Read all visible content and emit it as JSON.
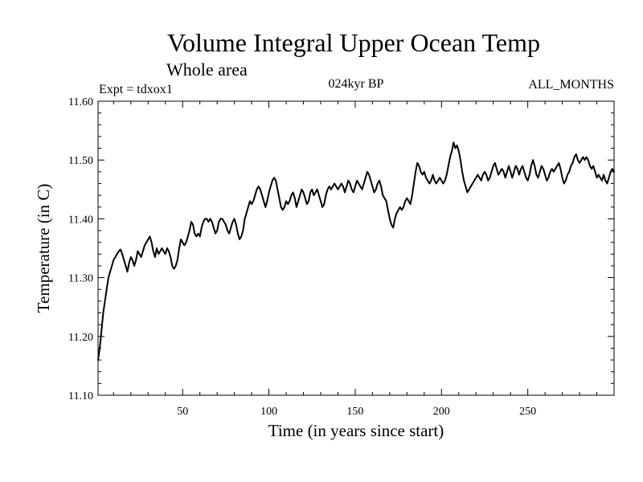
{
  "chart_data": {
    "type": "line",
    "title": "Volume Integral Upper Ocean Temp",
    "subtitle": "Whole area",
    "annotations": {
      "left": "Expt = tdxox1",
      "center": "024kyr BP",
      "right": "ALL_MONTHS"
    },
    "xlabel": "Time (in years since start)",
    "ylabel": "Temperature (in C)",
    "xlim": [
      1,
      300
    ],
    "ylim": [
      11.1,
      11.6
    ],
    "x_ticks": [
      50,
      100,
      150,
      200,
      250
    ],
    "x_tick_labels": [
      "50",
      "100",
      "150",
      "200",
      "250"
    ],
    "y_ticks": [
      11.1,
      11.2,
      11.3,
      11.4,
      11.5,
      11.6
    ],
    "y_tick_labels": [
      "11.10",
      "11.20",
      "11.30",
      "11.40",
      "11.50",
      "11.60"
    ],
    "grid": false,
    "legend": "none",
    "series": [
      {
        "name": "Temperature",
        "color": "#000000",
        "points": [
          [
            1,
            11.16
          ],
          [
            2,
            11.18
          ],
          [
            3,
            11.21
          ],
          [
            4,
            11.24
          ],
          [
            5,
            11.26
          ],
          [
            6,
            11.28
          ],
          [
            7,
            11.3
          ],
          [
            8,
            11.31
          ],
          [
            9,
            11.32
          ],
          [
            10,
            11.33
          ],
          [
            11,
            11.335
          ],
          [
            12,
            11.34
          ],
          [
            13,
            11.345
          ],
          [
            14,
            11.348
          ],
          [
            15,
            11.34
          ],
          [
            16,
            11.33
          ],
          [
            17,
            11.32
          ],
          [
            18,
            11.31
          ],
          [
            19,
            11.325
          ],
          [
            20,
            11.335
          ],
          [
            21,
            11.33
          ],
          [
            22,
            11.32
          ],
          [
            23,
            11.33
          ],
          [
            24,
            11.345
          ],
          [
            25,
            11.34
          ],
          [
            26,
            11.335
          ],
          [
            27,
            11.345
          ],
          [
            28,
            11.355
          ],
          [
            29,
            11.36
          ],
          [
            30,
            11.365
          ],
          [
            31,
            11.37
          ],
          [
            32,
            11.36
          ],
          [
            33,
            11.345
          ],
          [
            34,
            11.335
          ],
          [
            35,
            11.35
          ],
          [
            36,
            11.34
          ],
          [
            37,
            11.345
          ],
          [
            38,
            11.35
          ],
          [
            39,
            11.345
          ],
          [
            40,
            11.34
          ],
          [
            41,
            11.35
          ],
          [
            42,
            11.345
          ],
          [
            43,
            11.335
          ],
          [
            44,
            11.32
          ],
          [
            45,
            11.315
          ],
          [
            46,
            11.32
          ],
          [
            47,
            11.33
          ],
          [
            48,
            11.35
          ],
          [
            49,
            11.365
          ],
          [
            50,
            11.36
          ],
          [
            51,
            11.355
          ],
          [
            52,
            11.36
          ],
          [
            53,
            11.37
          ],
          [
            54,
            11.38
          ],
          [
            55,
            11.395
          ],
          [
            56,
            11.39
          ],
          [
            57,
            11.375
          ],
          [
            58,
            11.37
          ],
          [
            59,
            11.375
          ],
          [
            60,
            11.37
          ],
          [
            61,
            11.385
          ],
          [
            62,
            11.395
          ],
          [
            63,
            11.4
          ],
          [
            64,
            11.4
          ],
          [
            65,
            11.395
          ],
          [
            66,
            11.4
          ],
          [
            67,
            11.395
          ],
          [
            68,
            11.385
          ],
          [
            69,
            11.375
          ],
          [
            70,
            11.38
          ],
          [
            71,
            11.395
          ],
          [
            72,
            11.4
          ],
          [
            73,
            11.4
          ],
          [
            74,
            11.395
          ],
          [
            75,
            11.39
          ],
          [
            76,
            11.38
          ],
          [
            77,
            11.375
          ],
          [
            78,
            11.385
          ],
          [
            79,
            11.395
          ],
          [
            80,
            11.4
          ],
          [
            81,
            11.39
          ],
          [
            82,
            11.375
          ],
          [
            83,
            11.365
          ],
          [
            84,
            11.37
          ],
          [
            85,
            11.38
          ],
          [
            86,
            11.4
          ],
          [
            87,
            11.41
          ],
          [
            88,
            11.42
          ],
          [
            89,
            11.43
          ],
          [
            90,
            11.425
          ],
          [
            91,
            11.43
          ],
          [
            92,
            11.44
          ],
          [
            93,
            11.45
          ],
          [
            94,
            11.455
          ],
          [
            95,
            11.45
          ],
          [
            96,
            11.44
          ],
          [
            97,
            11.43
          ],
          [
            98,
            11.42
          ],
          [
            99,
            11.43
          ],
          [
            100,
            11.445
          ],
          [
            101,
            11.455
          ],
          [
            102,
            11.465
          ],
          [
            103,
            11.47
          ],
          [
            104,
            11.465
          ],
          [
            105,
            11.45
          ],
          [
            106,
            11.435
          ],
          [
            107,
            11.42
          ],
          [
            108,
            11.415
          ],
          [
            109,
            11.42
          ],
          [
            110,
            11.43
          ],
          [
            111,
            11.425
          ],
          [
            112,
            11.43
          ],
          [
            113,
            11.44
          ],
          [
            114,
            11.445
          ],
          [
            115,
            11.435
          ],
          [
            116,
            11.42
          ],
          [
            117,
            11.43
          ],
          [
            118,
            11.44
          ],
          [
            119,
            11.45
          ],
          [
            120,
            11.445
          ],
          [
            121,
            11.435
          ],
          [
            122,
            11.425
          ],
          [
            123,
            11.43
          ],
          [
            124,
            11.445
          ],
          [
            125,
            11.45
          ],
          [
            126,
            11.44
          ],
          [
            127,
            11.445
          ],
          [
            128,
            11.45
          ],
          [
            129,
            11.44
          ],
          [
            130,
            11.43
          ],
          [
            131,
            11.42
          ],
          [
            132,
            11.425
          ],
          [
            133,
            11.44
          ],
          [
            134,
            11.45
          ],
          [
            135,
            11.455
          ],
          [
            136,
            11.45
          ],
          [
            137,
            11.455
          ],
          [
            138,
            11.46
          ],
          [
            139,
            11.455
          ],
          [
            140,
            11.45
          ],
          [
            141,
            11.455
          ],
          [
            142,
            11.46
          ],
          [
            143,
            11.455
          ],
          [
            144,
            11.445
          ],
          [
            145,
            11.455
          ],
          [
            146,
            11.465
          ],
          [
            147,
            11.46
          ],
          [
            148,
            11.45
          ],
          [
            149,
            11.445
          ],
          [
            150,
            11.455
          ],
          [
            151,
            11.465
          ],
          [
            152,
            11.46
          ],
          [
            153,
            11.455
          ],
          [
            154,
            11.45
          ],
          [
            155,
            11.46
          ],
          [
            156,
            11.47
          ],
          [
            157,
            11.48
          ],
          [
            158,
            11.475
          ],
          [
            159,
            11.465
          ],
          [
            160,
            11.455
          ],
          [
            161,
            11.445
          ],
          [
            162,
            11.45
          ],
          [
            163,
            11.46
          ],
          [
            164,
            11.465
          ],
          [
            165,
            11.455
          ],
          [
            166,
            11.44
          ],
          [
            167,
            11.435
          ],
          [
            168,
            11.43
          ],
          [
            169,
            11.415
          ],
          [
            170,
            11.4
          ],
          [
            171,
            11.39
          ],
          [
            172,
            11.385
          ],
          [
            173,
            11.4
          ],
          [
            174,
            11.41
          ],
          [
            175,
            11.415
          ],
          [
            176,
            11.42
          ],
          [
            177,
            11.415
          ],
          [
            178,
            11.42
          ],
          [
            179,
            11.43
          ],
          [
            180,
            11.435
          ],
          [
            181,
            11.43
          ],
          [
            182,
            11.425
          ],
          [
            183,
            11.44
          ],
          [
            184,
            11.46
          ],
          [
            185,
            11.48
          ],
          [
            186,
            11.495
          ],
          [
            187,
            11.49
          ],
          [
            188,
            11.48
          ],
          [
            189,
            11.475
          ],
          [
            190,
            11.48
          ],
          [
            191,
            11.47
          ],
          [
            192,
            11.465
          ],
          [
            193,
            11.46
          ],
          [
            194,
            11.465
          ],
          [
            195,
            11.475
          ],
          [
            196,
            11.465
          ],
          [
            197,
            11.46
          ],
          [
            198,
            11.465
          ],
          [
            199,
            11.47
          ],
          [
            200,
            11.465
          ],
          [
            201,
            11.46
          ],
          [
            202,
            11.465
          ],
          [
            203,
            11.475
          ],
          [
            204,
            11.49
          ],
          [
            205,
            11.505
          ],
          [
            206,
            11.515
          ],
          [
            207,
            11.53
          ],
          [
            208,
            11.52
          ],
          [
            209,
            11.525
          ],
          [
            210,
            11.515
          ],
          [
            211,
            11.5
          ],
          [
            212,
            11.48
          ],
          [
            213,
            11.465
          ],
          [
            214,
            11.455
          ],
          [
            215,
            11.445
          ],
          [
            216,
            11.45
          ],
          [
            217,
            11.455
          ],
          [
            218,
            11.46
          ],
          [
            219,
            11.465
          ],
          [
            220,
            11.47
          ],
          [
            221,
            11.475
          ],
          [
            222,
            11.47
          ],
          [
            223,
            11.465
          ],
          [
            224,
            11.475
          ],
          [
            225,
            11.48
          ],
          [
            226,
            11.475
          ],
          [
            227,
            11.465
          ],
          [
            228,
            11.47
          ],
          [
            229,
            11.48
          ],
          [
            230,
            11.49
          ],
          [
            231,
            11.495
          ],
          [
            232,
            11.485
          ],
          [
            233,
            11.475
          ],
          [
            234,
            11.48
          ],
          [
            235,
            11.485
          ],
          [
            236,
            11.48
          ],
          [
            237,
            11.47
          ],
          [
            238,
            11.48
          ],
          [
            239,
            11.49
          ],
          [
            240,
            11.48
          ],
          [
            241,
            11.47
          ],
          [
            242,
            11.48
          ],
          [
            243,
            11.49
          ],
          [
            244,
            11.485
          ],
          [
            245,
            11.475
          ],
          [
            246,
            11.485
          ],
          [
            247,
            11.49
          ],
          [
            248,
            11.48
          ],
          [
            249,
            11.47
          ],
          [
            250,
            11.465
          ],
          [
            251,
            11.475
          ],
          [
            252,
            11.49
          ],
          [
            253,
            11.5
          ],
          [
            254,
            11.49
          ],
          [
            255,
            11.475
          ],
          [
            256,
            11.47
          ],
          [
            257,
            11.48
          ],
          [
            258,
            11.49
          ],
          [
            259,
            11.485
          ],
          [
            260,
            11.475
          ],
          [
            261,
            11.465
          ],
          [
            262,
            11.47
          ],
          [
            263,
            11.48
          ],
          [
            264,
            11.485
          ],
          [
            265,
            11.48
          ],
          [
            266,
            11.485
          ],
          [
            267,
            11.49
          ],
          [
            268,
            11.495
          ],
          [
            269,
            11.485
          ],
          [
            270,
            11.47
          ],
          [
            271,
            11.46
          ],
          [
            272,
            11.465
          ],
          [
            273,
            11.475
          ],
          [
            274,
            11.48
          ],
          [
            275,
            11.49
          ],
          [
            276,
            11.495
          ],
          [
            277,
            11.505
          ],
          [
            278,
            11.51
          ],
          [
            279,
            11.5
          ],
          [
            280,
            11.495
          ],
          [
            281,
            11.5
          ],
          [
            282,
            11.505
          ],
          [
            283,
            11.5
          ],
          [
            284,
            11.505
          ],
          [
            285,
            11.5
          ],
          [
            286,
            11.49
          ],
          [
            287,
            11.485
          ],
          [
            288,
            11.49
          ],
          [
            289,
            11.48
          ],
          [
            290,
            11.47
          ],
          [
            291,
            11.475
          ],
          [
            292,
            11.47
          ],
          [
            293,
            11.465
          ],
          [
            294,
            11.475
          ],
          [
            295,
            11.465
          ],
          [
            296,
            11.46
          ],
          [
            297,
            11.47
          ],
          [
            298,
            11.48
          ],
          [
            299,
            11.485
          ],
          [
            300,
            11.48
          ]
        ]
      }
    ]
  }
}
